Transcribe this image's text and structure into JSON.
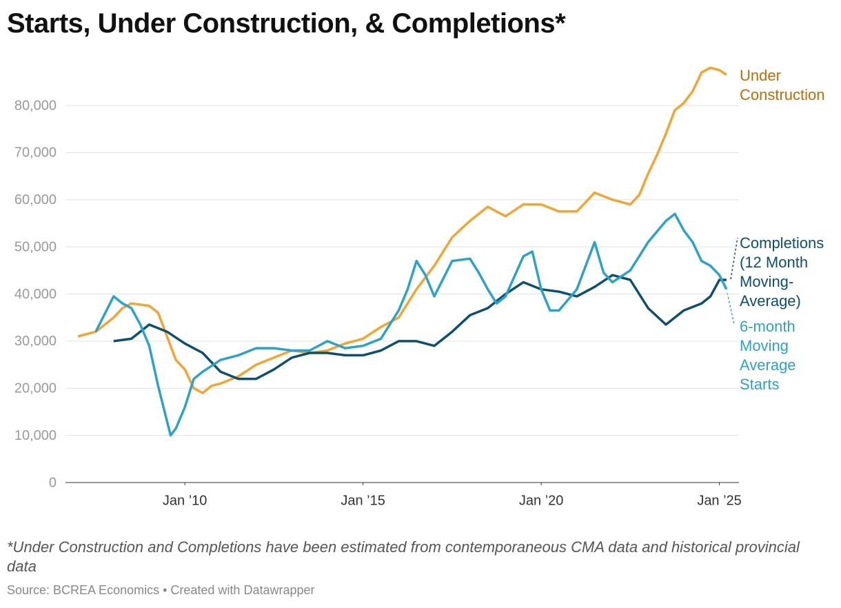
{
  "chart_data": {
    "type": "line",
    "title": "Starts, Under Construction, & Completions*",
    "footnote": "*Under Construction and Completions have been estimated from contemporaneous CMA data and historical provincial data",
    "source": "Source: BCREA Economics • Created with Datawrapper",
    "xlim": [
      2006.65,
      2025.55
    ],
    "xticks": [
      {
        "value": 2010,
        "label": "Jan ’10"
      },
      {
        "value": 2015,
        "label": "Jan ’15"
      },
      {
        "value": 2020,
        "label": "Jan ’20"
      },
      {
        "value": 2025,
        "label": "Jan ’25"
      }
    ],
    "ylim": [
      0,
      90000
    ],
    "yticks": [
      {
        "value": 0,
        "label": "0"
      },
      {
        "value": 10000,
        "label": "10,000"
      },
      {
        "value": 20000,
        "label": "20,000"
      },
      {
        "value": 30000,
        "label": "30,000"
      },
      {
        "value": 40000,
        "label": "40,000"
      },
      {
        "value": 50000,
        "label": "50,000"
      },
      {
        "value": 60000,
        "label": "60,000"
      },
      {
        "value": 70000,
        "label": "70,000"
      },
      {
        "value": 80000,
        "label": "80,000"
      }
    ],
    "grid": true,
    "series": [
      {
        "name": "Under Construction",
        "color": "#f4a52f",
        "label_color": "#c06c00",
        "x": [
          2007.0,
          2007.5,
          2008.0,
          2008.25,
          2008.5,
          2009.0,
          2009.25,
          2009.5,
          2009.75,
          2010.0,
          2010.25,
          2010.5,
          2010.75,
          2011.0,
          2011.5,
          2012.0,
          2012.5,
          2013.0,
          2013.5,
          2014.0,
          2014.5,
          2015.0,
          2015.5,
          2016.0,
          2016.5,
          2017.0,
          2017.5,
          2018.0,
          2018.5,
          2019.0,
          2019.5,
          2020.0,
          2020.5,
          2021.0,
          2021.5,
          2022.0,
          2022.5,
          2022.75,
          2023.0,
          2023.25,
          2023.5,
          2023.75,
          2024.0,
          2024.25,
          2024.5,
          2024.75,
          2025.0,
          2025.2
        ],
        "values": [
          31000,
          32000,
          35000,
          37000,
          38000,
          37500,
          36000,
          31000,
          26000,
          24000,
          20000,
          19000,
          20500,
          21000,
          22500,
          25000,
          26500,
          28000,
          27500,
          28000,
          29500,
          30500,
          33000,
          35000,
          41000,
          46000,
          52000,
          55500,
          58500,
          56500,
          59000,
          59000,
          57500,
          57500,
          61500,
          60000,
          59000,
          61000,
          65500,
          69500,
          74000,
          79000,
          80500,
          83000,
          87000,
          88000,
          87500,
          86500
        ]
      },
      {
        "name": "Completions (12 Month Moving-Average)",
        "color": "#0b4f71",
        "label_color": "#0b4f71",
        "x": [
          2008.0,
          2008.5,
          2009.0,
          2009.5,
          2010.0,
          2010.5,
          2011.0,
          2011.5,
          2012.0,
          2012.5,
          2013.0,
          2013.5,
          2014.0,
          2014.5,
          2015.0,
          2015.5,
          2016.0,
          2016.5,
          2017.0,
          2017.5,
          2018.0,
          2018.5,
          2019.0,
          2019.5,
          2020.0,
          2020.5,
          2021.0,
          2021.5,
          2022.0,
          2022.5,
          2023.0,
          2023.5,
          2024.0,
          2024.5,
          2024.75,
          2025.0,
          2025.2
        ],
        "values": [
          30000,
          30500,
          33500,
          32000,
          29500,
          27500,
          23500,
          22000,
          22000,
          24000,
          26500,
          27500,
          27500,
          27000,
          27000,
          28000,
          30000,
          30000,
          29000,
          32000,
          35500,
          37000,
          40000,
          42500,
          41000,
          40500,
          39500,
          41500,
          44000,
          43000,
          37000,
          33500,
          36500,
          38000,
          39500,
          43000,
          43000
        ]
      },
      {
        "name": "6-month Moving Average Starts",
        "color": "#2aa3cc",
        "label_color": "#2aa3cc",
        "x": [
          2007.5,
          2008.0,
          2008.25,
          2008.5,
          2008.75,
          2009.0,
          2009.25,
          2009.5,
          2009.6,
          2009.75,
          2010.0,
          2010.25,
          2010.5,
          2011.0,
          2011.5,
          2012.0,
          2012.5,
          2013.0,
          2013.5,
          2014.0,
          2014.5,
          2015.0,
          2015.5,
          2016.0,
          2016.25,
          2016.5,
          2016.75,
          2017.0,
          2017.5,
          2018.0,
          2018.25,
          2018.5,
          2018.75,
          2019.0,
          2019.5,
          2019.75,
          2020.0,
          2020.25,
          2020.5,
          2021.0,
          2021.5,
          2021.75,
          2022.0,
          2022.5,
          2023.0,
          2023.5,
          2023.75,
          2024.0,
          2024.25,
          2024.5,
          2024.75,
          2025.0,
          2025.2
        ],
        "values": [
          32000,
          39500,
          38000,
          37000,
          33500,
          29000,
          20500,
          13000,
          10000,
          11500,
          16000,
          22000,
          23500,
          26000,
          27000,
          28500,
          28500,
          28000,
          28000,
          30000,
          28500,
          29000,
          30500,
          36500,
          41000,
          47000,
          44000,
          39500,
          47000,
          47500,
          44500,
          41000,
          38000,
          39500,
          48000,
          49000,
          41000,
          36500,
          36500,
          41000,
          51000,
          44500,
          42500,
          45000,
          51000,
          55500,
          57000,
          53500,
          51000,
          47000,
          46000,
          44000,
          41000
        ]
      }
    ]
  }
}
